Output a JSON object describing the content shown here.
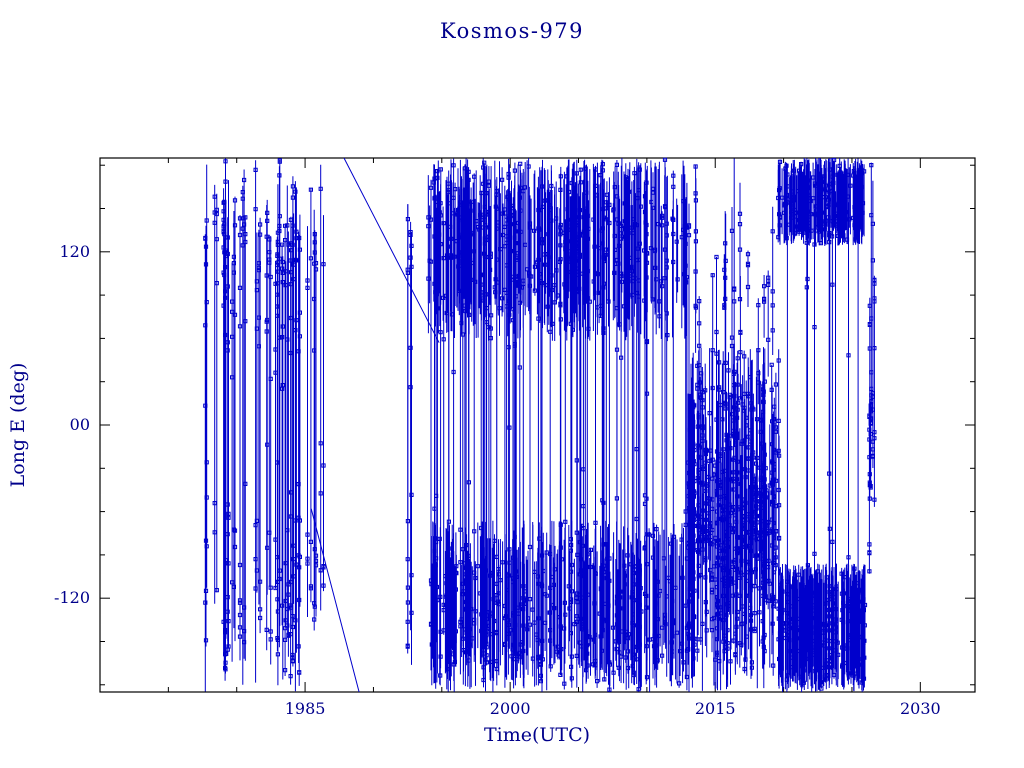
{
  "page": {
    "background": "#ffffff"
  },
  "chart_data": {
    "type": "scatter",
    "title": "Kosmos-979",
    "xlabel": "Time(UTC)",
    "ylabel": "Long E (deg)",
    "xlim": [
      1970,
      2034
    ],
    "ylim": [
      -185,
      185
    ],
    "grid": false,
    "legend": null,
    "marker": "open-square",
    "seed": 7,
    "colors": {
      "series": "#0000cc",
      "text": "#00008b",
      "frame": "#000000",
      "background": "#ffffff"
    },
    "xticks": [
      {
        "value": 1985,
        "label": "1985"
      },
      {
        "value": 2000,
        "label": "2000"
      },
      {
        "value": 2015,
        "label": "2015"
      },
      {
        "value": 2030,
        "label": "2030"
      }
    ],
    "yticks": [
      {
        "value": -120,
        "label": "-120"
      },
      {
        "value": 0,
        "label": "00"
      },
      {
        "value": 120,
        "label": "120"
      }
    ],
    "x_minor_ticks": [
      1975,
      1980,
      1990,
      1995,
      2005,
      2010,
      2020,
      2025
    ],
    "y_minor_ticks": [
      -180,
      -150,
      -90,
      -60,
      -30,
      30,
      60,
      90,
      150,
      180
    ],
    "bands": [
      {
        "name": "era-1978-1986",
        "t0": 1977.7,
        "t1": 1986.35,
        "lon0": -185,
        "lon1": 185,
        "strokes": 62,
        "span_min": 0.8,
        "markers_per_stroke": 5,
        "end_bias": true
      },
      {
        "name": "vertical-1992",
        "t0": 1992.5,
        "t1": 1992.8,
        "lon0": -185,
        "lon1": 185,
        "strokes": 4,
        "span_min": 0.85,
        "markers_per_stroke": 5,
        "end_bias": true
      },
      {
        "name": "upper-band-1994-2013",
        "t0": 1994.0,
        "t1": 2012.9,
        "lon0": 58,
        "lon1": 185,
        "strokes": 270,
        "span_min": 0.72,
        "markers_per_stroke": 1
      },
      {
        "name": "lower-band-1994-2013",
        "t0": 1994.2,
        "t1": 2013.4,
        "lon0": -185,
        "lon1": -66,
        "strokes": 260,
        "span_min": 0.7,
        "markers_per_stroke": 1
      },
      {
        "name": "wraparound-lines-1994-2013",
        "t0": 1994.2,
        "t1": 2013.6,
        "lon0": -185,
        "lon1": 185,
        "strokes": 85,
        "span_min": 0.88,
        "markers_per_stroke": 6,
        "end_bias": true
      },
      {
        "name": "chaotic-2013-2020",
        "t0": 2012.9,
        "t1": 2019.7,
        "lon0": -185,
        "lon1": 55,
        "strokes": 160,
        "span_min": 0.55,
        "markers_per_stroke": 4
      },
      {
        "name": "spikes-2013-2020",
        "t0": 2013.1,
        "t1": 2019.5,
        "lon0": -60,
        "lon1": 185,
        "strokes": 22,
        "span_min": 0.35,
        "markers_per_stroke": 4
      },
      {
        "name": "bottom-block-2020-2026",
        "t0": 2019.6,
        "t1": 2026.0,
        "lon0": -185,
        "lon1": -96,
        "strokes": 220,
        "span_min": 0.8,
        "markers_per_stroke": 1,
        "gap": [
          2024.0,
          2024.22
        ]
      },
      {
        "name": "top-block-2020-2026",
        "t0": 2019.6,
        "t1": 2025.9,
        "lon0": 124,
        "lon1": 185,
        "strokes": 190,
        "span_min": 0.78,
        "markers_per_stroke": 1
      },
      {
        "name": "wraparound-lines-2020-2026",
        "t0": 2019.7,
        "t1": 2026.0,
        "lon0": -185,
        "lon1": 185,
        "strokes": 10,
        "span_min": 0.9,
        "markers_per_stroke": 6,
        "end_bias": true
      },
      {
        "name": "final-column-2026",
        "t0": 2026.2,
        "t1": 2026.7,
        "lon0": -185,
        "lon1": 185,
        "strokes": 6,
        "span_min": 0.45,
        "markers_per_stroke": 9,
        "end_bias": true
      }
    ],
    "drift_lines": [
      {
        "name": "drift-1985-1989",
        "points": [
          [
            1985.45,
            -58
          ],
          [
            1988.95,
            -185
          ]
        ]
      },
      {
        "name": "drift-1988-1995",
        "points": [
          [
            1987.85,
            185
          ],
          [
            1994.8,
            57
          ]
        ]
      }
    ]
  }
}
